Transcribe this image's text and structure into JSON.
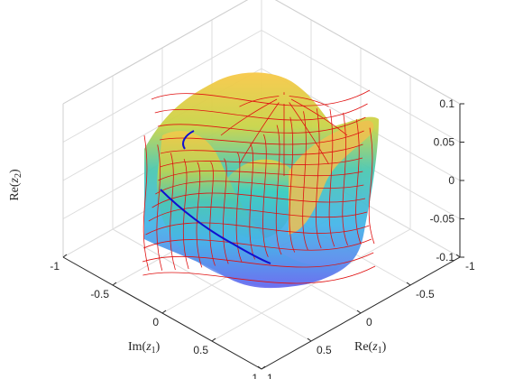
{
  "chart_data": {
    "type": "surface",
    "title": "",
    "xlabel": "Re(z1)",
    "ylabel": "Im(z1)",
    "zlabel": "Re(z2)",
    "xlabel_parts": {
      "base": "Re(",
      "var": "z",
      "sub": "1",
      "end": ")"
    },
    "ylabel_parts": {
      "base": "Im(",
      "var": "z",
      "sub": "1",
      "end": ")"
    },
    "zlabel_parts": {
      "base": "Re(",
      "var": "z",
      "sub": "2",
      "end": ")"
    },
    "xlim": [
      -1,
      1
    ],
    "ylim": [
      -1,
      1
    ],
    "zlim": [
      -0.1,
      0.1
    ],
    "xticks": [
      "-1",
      "-0.5",
      "0",
      "0.5",
      "1"
    ],
    "yticks": [
      "-1",
      "-0.5",
      "0",
      "0.5",
      "1"
    ],
    "zticks": [
      "-0.1",
      "-0.05",
      "0",
      "0.05",
      "0.1"
    ],
    "grid": true,
    "colormap": "parula",
    "mesh_color": "#e01010",
    "highlight_curve_color": "#1010d0",
    "view": "3d-isometric"
  }
}
